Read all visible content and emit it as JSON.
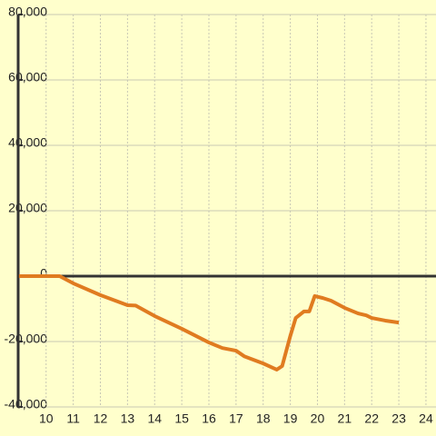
{
  "chart_data": {
    "type": "line",
    "x": [
      9,
      10.5,
      11,
      12,
      13,
      13.3,
      14,
      15,
      16,
      16.5,
      17,
      17.3,
      18,
      18.5,
      18.7,
      19,
      19.2,
      19.5,
      19.7,
      19.9,
      20.2,
      20.5,
      21,
      21.5,
      21.8,
      22,
      22.5,
      23
    ],
    "series": [
      {
        "color": "#e07b20",
        "values": [
          0,
          0,
          -2200,
          -5800,
          -8900,
          -9000,
          -12200,
          -16100,
          -20300,
          -22000,
          -22800,
          -24500,
          -26700,
          -28600,
          -27500,
          -18300,
          -12800,
          -10800,
          -10800,
          -6100,
          -6700,
          -7500,
          -9700,
          -11400,
          -12000,
          -12800,
          -13600,
          -14200
        ]
      }
    ],
    "xlim": [
      8.97,
      24.37
    ],
    "xticks": [
      10,
      11,
      12,
      13,
      14,
      15,
      16,
      17,
      18,
      19,
      20,
      21,
      22,
      23,
      24
    ],
    "ylim": [
      -40000,
      80000
    ],
    "yticks": [
      {
        "value": -40000,
        "label": "-40,000"
      },
      {
        "value": -20000,
        "label": "-20,000"
      },
      0,
      {
        "value": 20000,
        "label": "20,000"
      },
      {
        "value": 40000,
        "label": "40,000"
      },
      {
        "value": 60000,
        "label": "60,000"
      },
      {
        "value": 80000,
        "label": "80,000"
      }
    ],
    "grid": true
  }
}
